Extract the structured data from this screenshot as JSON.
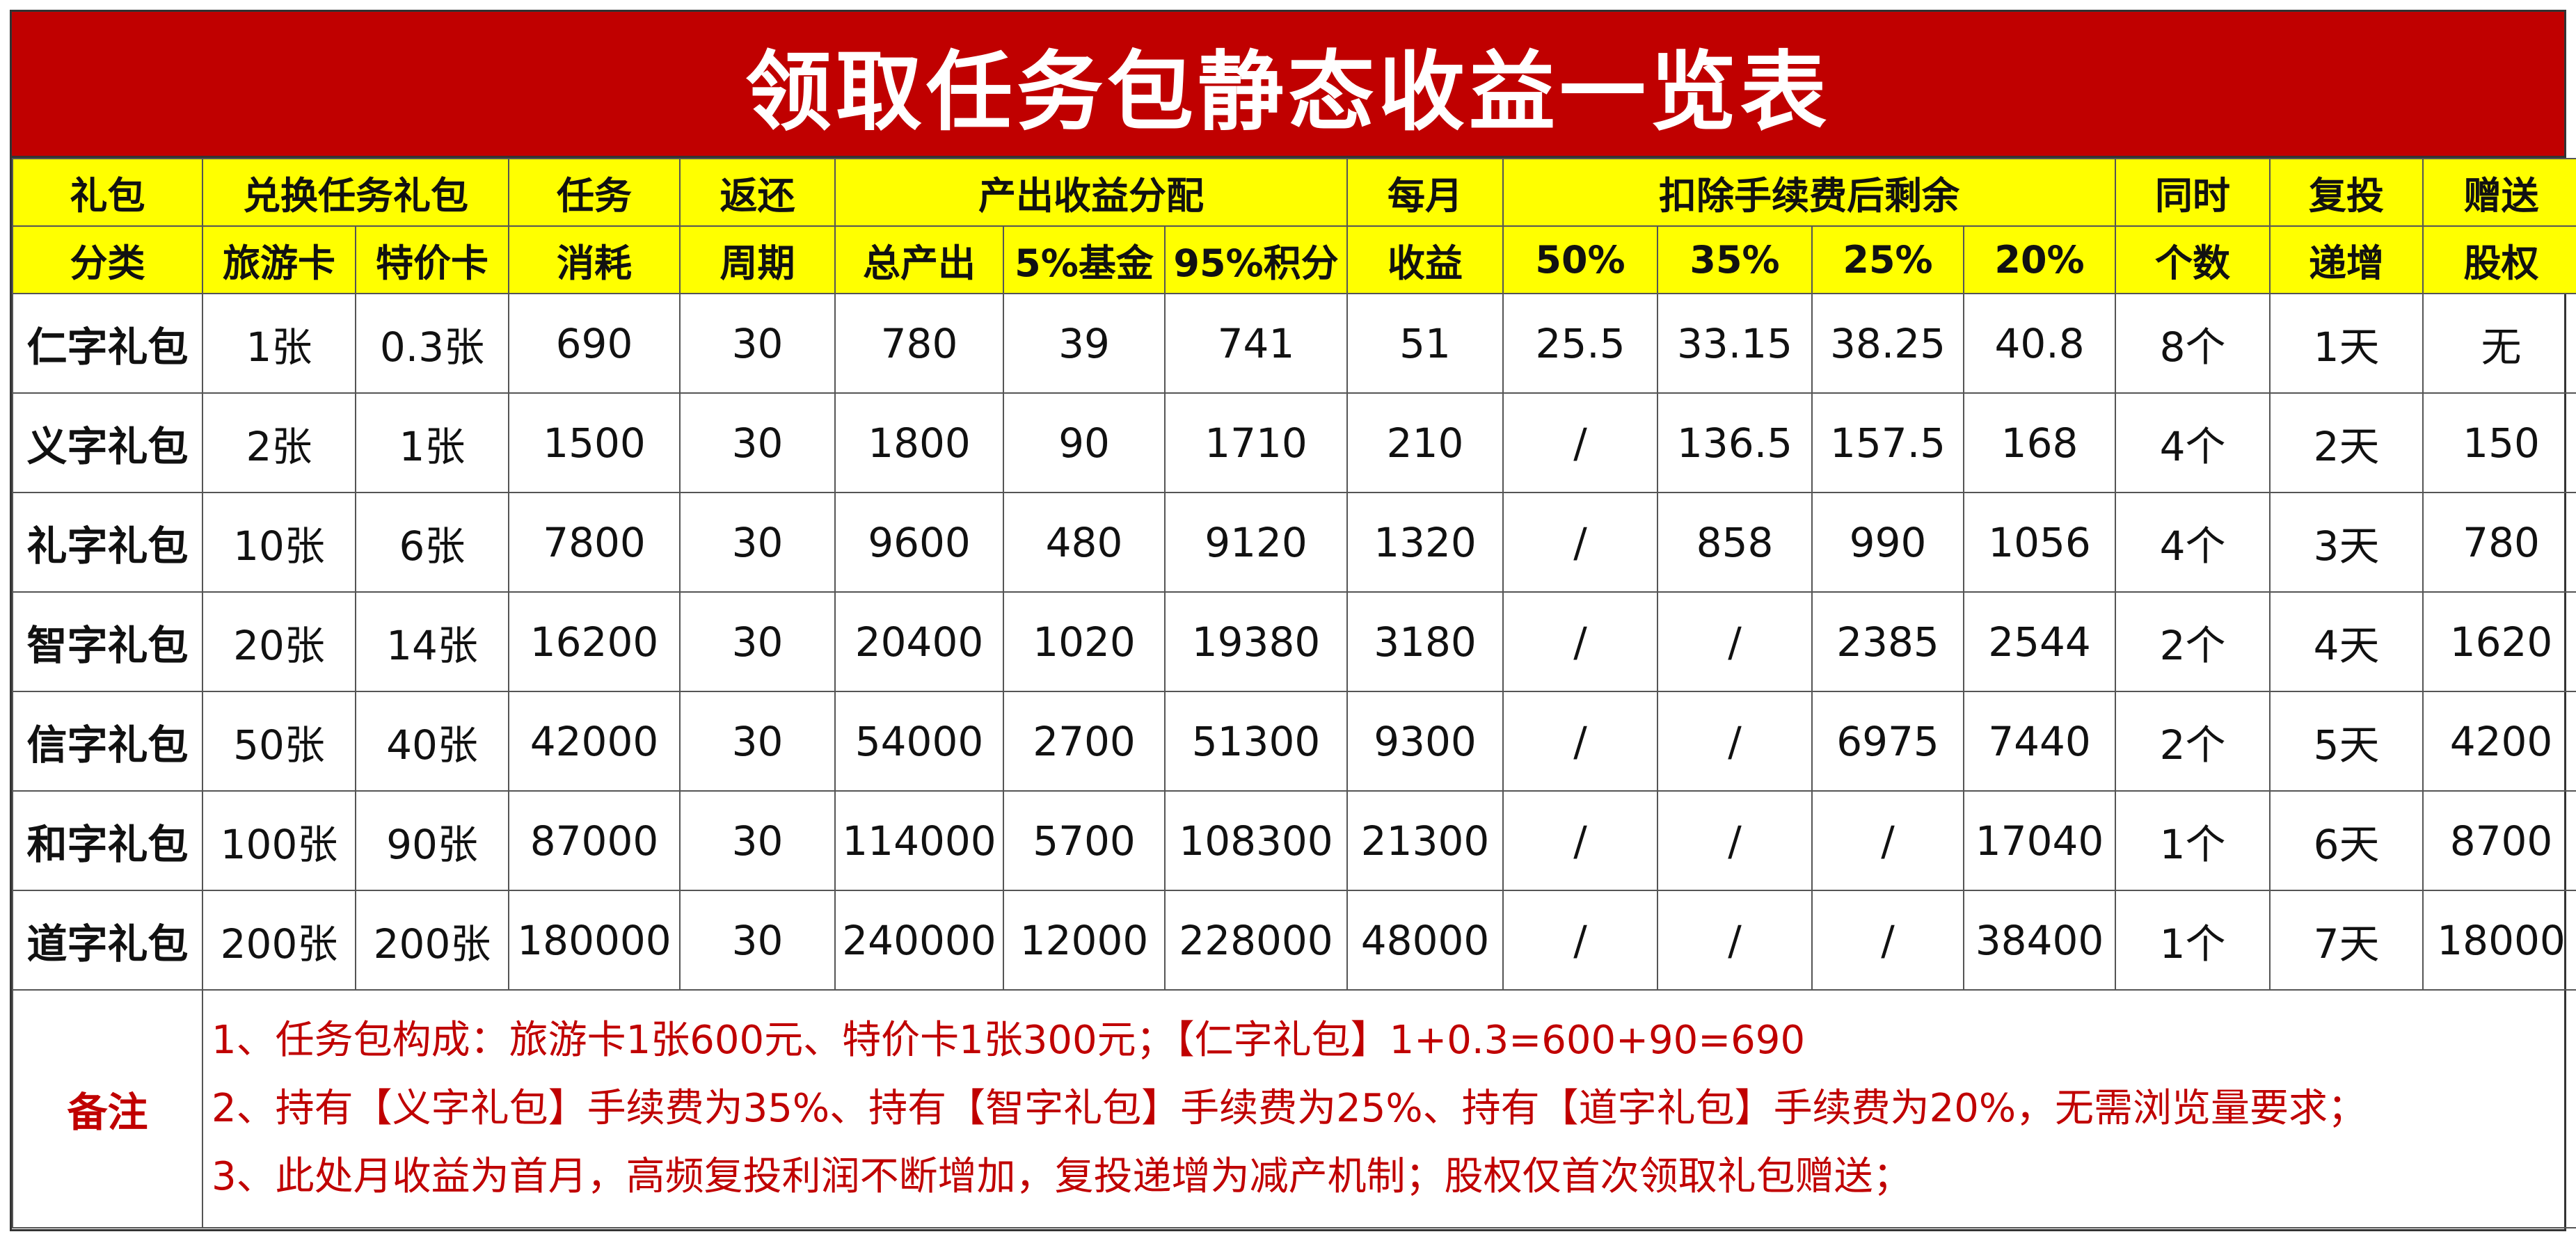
{
  "title": "领取任务包静态收益一览表",
  "headers": {
    "row1": {
      "category": "礼包",
      "exchange": "兑换任务礼包",
      "task": "任务",
      "return": "返还",
      "distribution": "产出收益分配",
      "monthly": "每月",
      "after_fee": "扣除手续费后剩余",
      "concurrent": "同时",
      "reinvest": "复投",
      "gift": "赠送"
    },
    "row2": {
      "category": "分类",
      "travel_card": "旅游卡",
      "special_card": "特价卡",
      "task": "消耗",
      "return": "周期",
      "total_output": "总产出",
      "fund": "5%基金",
      "points": "95%积分",
      "monthly": "收益",
      "p50": "50%",
      "p35": "35%",
      "p25": "25%",
      "p20": "20%",
      "concurrent": "个数",
      "reinvest": "递增",
      "gift": "股权"
    }
  },
  "rows": [
    {
      "name": "仁字礼包",
      "travel": "1张",
      "special": "0.3张",
      "consume": "690",
      "cycle": "30",
      "total": "780",
      "fund": "39",
      "points": "741",
      "monthly": "51",
      "p50": "25.5",
      "p35": "33.15",
      "p25": "38.25",
      "p20": "40.8",
      "count": "8个",
      "increment": "1天",
      "equity": "无"
    },
    {
      "name": "义字礼包",
      "travel": "2张",
      "special": "1张",
      "consume": "1500",
      "cycle": "30",
      "total": "1800",
      "fund": "90",
      "points": "1710",
      "monthly": "210",
      "p50": "/",
      "p35": "136.5",
      "p25": "157.5",
      "p20": "168",
      "count": "4个",
      "increment": "2天",
      "equity": "150"
    },
    {
      "name": "礼字礼包",
      "travel": "10张",
      "special": "6张",
      "consume": "7800",
      "cycle": "30",
      "total": "9600",
      "fund": "480",
      "points": "9120",
      "monthly": "1320",
      "p50": "/",
      "p35": "858",
      "p25": "990",
      "p20": "1056",
      "count": "4个",
      "increment": "3天",
      "equity": "780"
    },
    {
      "name": "智字礼包",
      "travel": "20张",
      "special": "14张",
      "consume": "16200",
      "cycle": "30",
      "total": "20400",
      "fund": "1020",
      "points": "19380",
      "monthly": "3180",
      "p50": "/",
      "p35": "/",
      "p25": "2385",
      "p20": "2544",
      "count": "2个",
      "increment": "4天",
      "equity": "1620"
    },
    {
      "name": "信字礼包",
      "travel": "50张",
      "special": "40张",
      "consume": "42000",
      "cycle": "30",
      "total": "54000",
      "fund": "2700",
      "points": "51300",
      "monthly": "9300",
      "p50": "/",
      "p35": "/",
      "p25": "6975",
      "p20": "7440",
      "count": "2个",
      "increment": "5天",
      "equity": "4200"
    },
    {
      "name": "和字礼包",
      "travel": "100张",
      "special": "90张",
      "consume": "87000",
      "cycle": "30",
      "total": "114000",
      "fund": "5700",
      "points": "108300",
      "monthly": "21300",
      "p50": "/",
      "p35": "/",
      "p25": "/",
      "p20": "17040",
      "count": "1个",
      "increment": "6天",
      "equity": "8700"
    },
    {
      "name": "道字礼包",
      "travel": "200张",
      "special": "200张",
      "consume": "180000",
      "cycle": "30",
      "total": "240000",
      "fund": "12000",
      "points": "228000",
      "monthly": "48000",
      "p50": "/",
      "p35": "/",
      "p25": "/",
      "p20": "38400",
      "count": "1个",
      "increment": "7天",
      "equity": "18000"
    }
  ],
  "notes": {
    "label": "备注",
    "lines": [
      "1、任务包构成：旅游卡1张600元、特价卡1张300元；【仁字礼包】1+0.3=600+90=690",
      "2、持有【义字礼包】手续费为35%、持有【智字礼包】手续费为25%、持有【道字礼包】手续费为20%，无需浏览量要求；",
      "3、此处月收益为首月，高频复投利润不断增加，复投递增为减产机制；股权仅首次领取礼包赠送；"
    ]
  },
  "colors": {
    "title_bg": "#c00000",
    "header_bg": "#ffff00",
    "note_text": "#c00000"
  }
}
